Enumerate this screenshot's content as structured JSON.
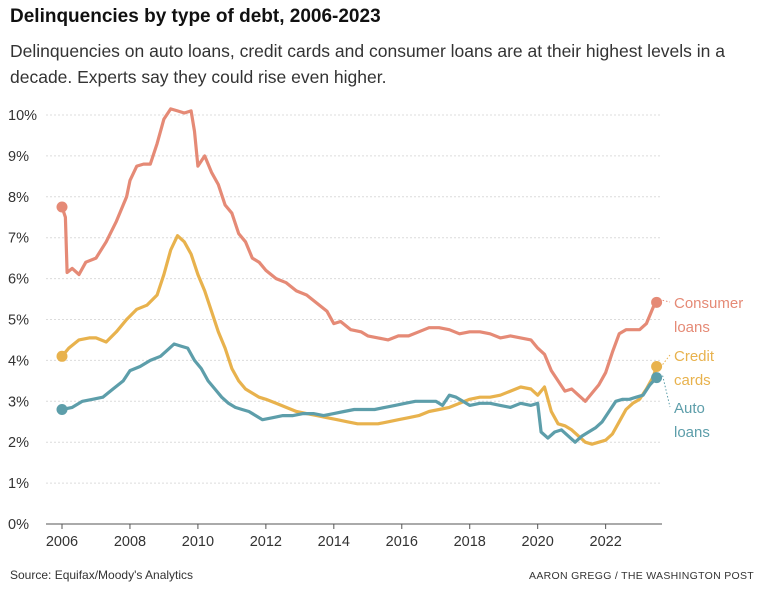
{
  "title": "Delinquencies by type of debt, 2006-2023",
  "subtitle": "Delinquencies on auto loans, credit cards and consumer loans are at their highest levels in a decade. Experts say they could rise even higher.",
  "source": "Source: Equifax/Moody's Analytics",
  "credit": "AARON GREGG / THE WASHINGTON POST",
  "chart_data": {
    "type": "line",
    "xlim": [
      2006,
      2023.6
    ],
    "ylim": [
      0,
      10
    ],
    "yticks": [
      {
        "v": 0,
        "label": "0%"
      },
      {
        "v": 1,
        "label": "1%"
      },
      {
        "v": 2,
        "label": "2%"
      },
      {
        "v": 3,
        "label": "3%"
      },
      {
        "v": 4,
        "label": "4%"
      },
      {
        "v": 5,
        "label": "5%"
      },
      {
        "v": 6,
        "label": "6%"
      },
      {
        "v": 7,
        "label": "7%"
      },
      {
        "v": 8,
        "label": "8%"
      },
      {
        "v": 9,
        "label": "9%"
      },
      {
        "v": 10,
        "label": "10%"
      }
    ],
    "xticks": [
      {
        "v": 2006,
        "label": "2006"
      },
      {
        "v": 2008,
        "label": "2008"
      },
      {
        "v": 2010,
        "label": "2010"
      },
      {
        "v": 2012,
        "label": "2012"
      },
      {
        "v": 2014,
        "label": "2014"
      },
      {
        "v": 2016,
        "label": "2016"
      },
      {
        "v": 2018,
        "label": "2018"
      },
      {
        "v": 2020,
        "label": "2020"
      },
      {
        "v": 2022,
        "label": "2022"
      }
    ],
    "grid": "horizontal",
    "series": [
      {
        "name": "Consumer loans",
        "label_lines": [
          "Consumer",
          "loans"
        ],
        "color": "#e58a76",
        "x": [
          2006.0,
          2006.1,
          2006.15,
          2006.3,
          2006.5,
          2006.7,
          2007.0,
          2007.3,
          2007.6,
          2007.9,
          2008.0,
          2008.2,
          2008.4,
          2008.6,
          2008.8,
          2009.0,
          2009.2,
          2009.4,
          2009.6,
          2009.8,
          2009.9,
          2010.0,
          2010.2,
          2010.4,
          2010.6,
          2010.8,
          2011.0,
          2011.2,
          2011.4,
          2011.6,
          2011.8,
          2012.0,
          2012.3,
          2012.6,
          2012.9,
          2013.2,
          2013.5,
          2013.8,
          2014.0,
          2014.2,
          2014.5,
          2014.8,
          2015.0,
          2015.3,
          2015.6,
          2015.9,
          2016.2,
          2016.5,
          2016.8,
          2017.1,
          2017.4,
          2017.7,
          2018.0,
          2018.3,
          2018.6,
          2018.9,
          2019.2,
          2019.5,
          2019.8,
          2020.0,
          2020.2,
          2020.4,
          2020.6,
          2020.8,
          2021.0,
          2021.2,
          2021.4,
          2021.6,
          2021.8,
          2022.0,
          2022.2,
          2022.4,
          2022.6,
          2022.8,
          2023.0,
          2023.2,
          2023.4,
          2023.5
        ],
        "y": [
          7.75,
          7.5,
          6.15,
          6.25,
          6.1,
          6.4,
          6.5,
          6.9,
          7.4,
          8.0,
          8.4,
          8.75,
          8.8,
          8.8,
          9.3,
          9.9,
          10.15,
          10.1,
          10.05,
          10.1,
          9.6,
          8.75,
          9.0,
          8.6,
          8.3,
          7.8,
          7.6,
          7.1,
          6.9,
          6.5,
          6.4,
          6.2,
          6.0,
          5.9,
          5.7,
          5.6,
          5.4,
          5.2,
          4.9,
          4.95,
          4.75,
          4.7,
          4.6,
          4.55,
          4.5,
          4.6,
          4.6,
          4.7,
          4.8,
          4.8,
          4.75,
          4.65,
          4.7,
          4.7,
          4.65,
          4.55,
          4.6,
          4.55,
          4.5,
          4.3,
          4.15,
          3.75,
          3.5,
          3.25,
          3.3,
          3.15,
          3.0,
          3.2,
          3.4,
          3.7,
          4.2,
          4.65,
          4.75,
          4.75,
          4.75,
          4.9,
          5.3,
          5.42
        ]
      },
      {
        "name": "Credit cards",
        "label_lines": [
          "Credit",
          "cards"
        ],
        "color": "#e8b24d",
        "x": [
          2006.0,
          2006.2,
          2006.5,
          2006.8,
          2007.0,
          2007.3,
          2007.6,
          2007.9,
          2008.2,
          2008.5,
          2008.8,
          2009.0,
          2009.2,
          2009.4,
          2009.6,
          2009.8,
          2010.0,
          2010.2,
          2010.4,
          2010.6,
          2010.8,
          2011.0,
          2011.2,
          2011.4,
          2011.6,
          2011.8,
          2012.0,
          2012.3,
          2012.6,
          2012.9,
          2013.2,
          2013.5,
          2013.8,
          2014.1,
          2014.4,
          2014.7,
          2015.0,
          2015.3,
          2015.6,
          2015.9,
          2016.2,
          2016.5,
          2016.8,
          2017.1,
          2017.4,
          2017.7,
          2018.0,
          2018.3,
          2018.6,
          2018.9,
          2019.2,
          2019.5,
          2019.8,
          2020.0,
          2020.2,
          2020.4,
          2020.6,
          2020.8,
          2021.0,
          2021.2,
          2021.4,
          2021.6,
          2021.8,
          2022.0,
          2022.2,
          2022.4,
          2022.6,
          2022.8,
          2023.0,
          2023.2,
          2023.4,
          2023.5
        ],
        "y": [
          4.1,
          4.3,
          4.5,
          4.55,
          4.55,
          4.45,
          4.7,
          5.0,
          5.25,
          5.35,
          5.6,
          6.1,
          6.7,
          7.05,
          6.9,
          6.6,
          6.1,
          5.7,
          5.2,
          4.7,
          4.3,
          3.8,
          3.5,
          3.3,
          3.2,
          3.1,
          3.05,
          2.95,
          2.85,
          2.75,
          2.7,
          2.65,
          2.6,
          2.55,
          2.5,
          2.45,
          2.45,
          2.45,
          2.5,
          2.55,
          2.6,
          2.65,
          2.75,
          2.8,
          2.85,
          2.95,
          3.05,
          3.1,
          3.1,
          3.15,
          3.25,
          3.35,
          3.3,
          3.15,
          3.35,
          2.75,
          2.45,
          2.4,
          2.3,
          2.15,
          2.0,
          1.95,
          2.0,
          2.05,
          2.2,
          2.5,
          2.8,
          2.95,
          3.05,
          3.3,
          3.6,
          3.85
        ]
      },
      {
        "name": "Auto loans",
        "label_lines": [
          "Auto",
          "loans"
        ],
        "color": "#5d9eaa",
        "x": [
          2006.0,
          2006.3,
          2006.6,
          2006.9,
          2007.2,
          2007.5,
          2007.8,
          2008.0,
          2008.3,
          2008.6,
          2008.9,
          2009.1,
          2009.3,
          2009.5,
          2009.7,
          2009.9,
          2010.1,
          2010.3,
          2010.5,
          2010.7,
          2010.9,
          2011.1,
          2011.3,
          2011.5,
          2011.7,
          2011.9,
          2012.2,
          2012.5,
          2012.8,
          2013.1,
          2013.4,
          2013.7,
          2014.0,
          2014.3,
          2014.6,
          2014.9,
          2015.2,
          2015.5,
          2015.8,
          2016.1,
          2016.4,
          2016.7,
          2017.0,
          2017.2,
          2017.4,
          2017.6,
          2017.8,
          2018.0,
          2018.3,
          2018.6,
          2018.9,
          2019.2,
          2019.5,
          2019.8,
          2020.0,
          2020.1,
          2020.3,
          2020.5,
          2020.7,
          2020.9,
          2021.1,
          2021.3,
          2021.5,
          2021.7,
          2021.9,
          2022.1,
          2022.3,
          2022.5,
          2022.7,
          2022.9,
          2023.1,
          2023.3,
          2023.5
        ],
        "y": [
          2.8,
          2.85,
          3.0,
          3.05,
          3.1,
          3.3,
          3.5,
          3.75,
          3.85,
          4.0,
          4.1,
          4.25,
          4.4,
          4.35,
          4.3,
          4.0,
          3.8,
          3.5,
          3.3,
          3.1,
          2.95,
          2.85,
          2.8,
          2.75,
          2.65,
          2.55,
          2.6,
          2.65,
          2.65,
          2.7,
          2.7,
          2.65,
          2.7,
          2.75,
          2.8,
          2.8,
          2.8,
          2.85,
          2.9,
          2.95,
          3.0,
          3.0,
          3.0,
          2.9,
          3.15,
          3.1,
          3.0,
          2.9,
          2.95,
          2.95,
          2.9,
          2.85,
          2.95,
          2.9,
          2.95,
          2.25,
          2.1,
          2.25,
          2.3,
          2.15,
          2.0,
          2.15,
          2.25,
          2.35,
          2.5,
          2.75,
          3.0,
          3.05,
          3.05,
          3.1,
          3.15,
          3.4,
          3.58
        ]
      }
    ]
  }
}
